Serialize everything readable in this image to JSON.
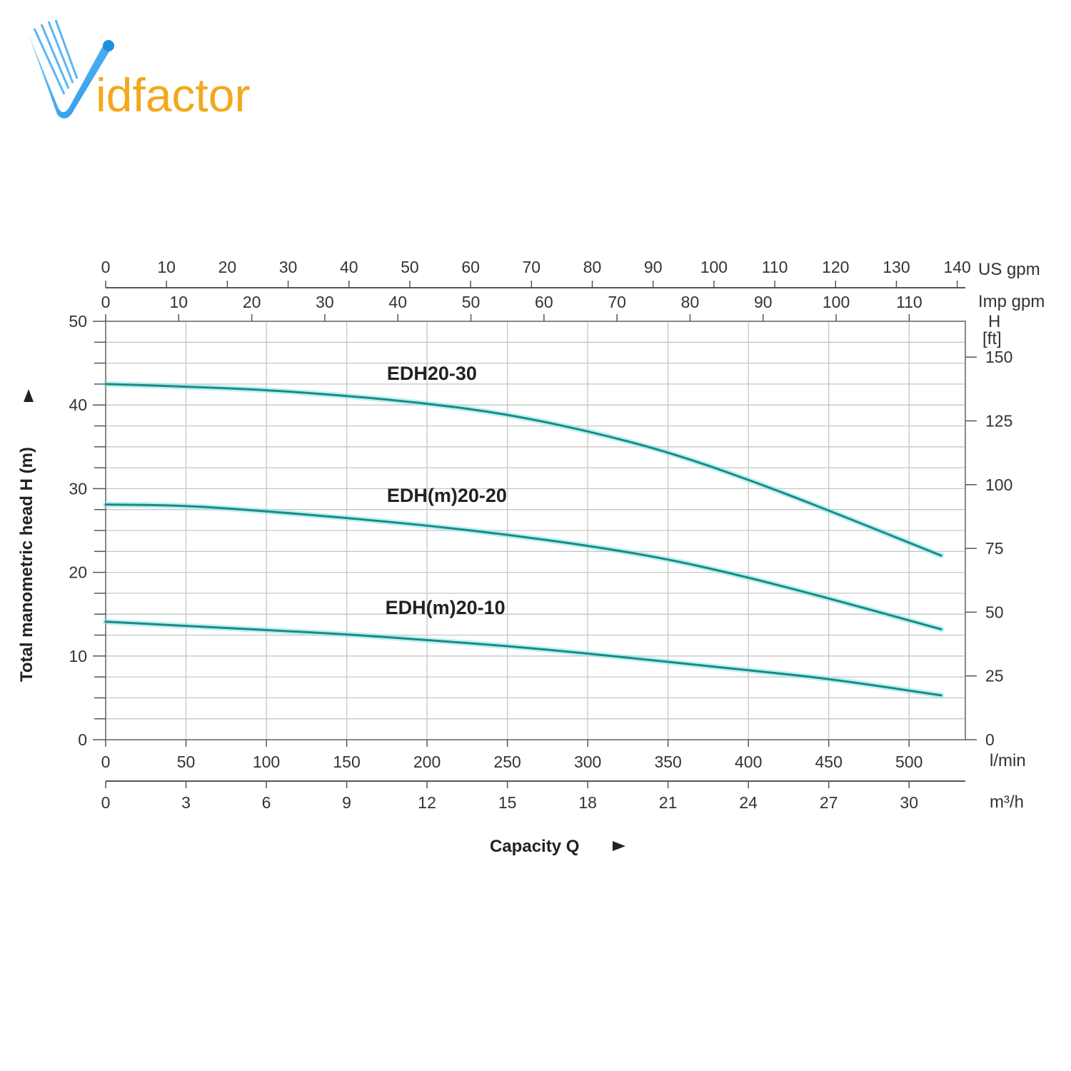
{
  "logo": {
    "text": "Vidfactor",
    "letter_v": "V",
    "suffix": "idfactor",
    "v_color": "#1c8fe3",
    "suffix_color": "#f2a81d"
  },
  "chart_data": {
    "type": "line",
    "title": "",
    "xlabel": "Capacity Q",
    "ylabel": "Total manometric head H (m)",
    "xlim": [
      0,
      535
    ],
    "ylim": [
      0,
      50
    ],
    "grid": true,
    "line_color": "#1a8a84",
    "glow_color": "#86e3e3",
    "x_axis_lmin": {
      "unit": "l/min",
      "ticks": [
        "0",
        "50",
        "100",
        "150",
        "200",
        "250",
        "300",
        "350",
        "400",
        "450",
        "500"
      ]
    },
    "x_axis_m3h": {
      "unit": "m³/h",
      "ticks": [
        "0",
        "3",
        "6",
        "9",
        "12",
        "15",
        "18",
        "21",
        "24",
        "27",
        "30"
      ]
    },
    "x_axis_usgpm": {
      "unit": "US gpm",
      "ticks": [
        "0",
        "10",
        "20",
        "30",
        "40",
        "50",
        "60",
        "70",
        "80",
        "90",
        "100",
        "110",
        "120",
        "130",
        "140"
      ]
    },
    "x_axis_impgpm": {
      "unit": "Imp gpm",
      "ticks": [
        "0",
        "10",
        "20",
        "30",
        "40",
        "50",
        "60",
        "70",
        "80",
        "90",
        "100",
        "110"
      ]
    },
    "y_axis_m": {
      "ticks": [
        "0",
        "10",
        "20",
        "30",
        "40",
        "50"
      ]
    },
    "y_axis_ft": {
      "unit_line1": "H",
      "unit_line2": "[ft]",
      "ticks": [
        "0",
        "25",
        "50",
        "75",
        "100",
        "125",
        "150"
      ]
    },
    "series": [
      {
        "name": "EDH20-30",
        "x": [
          0,
          50,
          100,
          150,
          200,
          250,
          300,
          350,
          400,
          450,
          520
        ],
        "y": [
          42.5,
          42.2,
          41.8,
          41.1,
          40.2,
          38.9,
          36.9,
          34.4,
          31.1,
          27.4,
          22.0
        ]
      },
      {
        "name": "EDH(m)20-20",
        "x": [
          0,
          50,
          100,
          150,
          200,
          250,
          300,
          350,
          400,
          450,
          520
        ],
        "y": [
          28.1,
          28.0,
          27.3,
          26.5,
          25.6,
          24.5,
          23.2,
          21.6,
          19.4,
          16.9,
          13.2
        ]
      },
      {
        "name": "EDH(m)20-10",
        "x": [
          0,
          50,
          100,
          150,
          200,
          250,
          300,
          350,
          400,
          450,
          520
        ],
        "y": [
          14.1,
          13.6,
          13.1,
          12.6,
          11.9,
          11.2,
          10.3,
          9.3,
          8.3,
          7.3,
          5.3
        ]
      }
    ]
  }
}
